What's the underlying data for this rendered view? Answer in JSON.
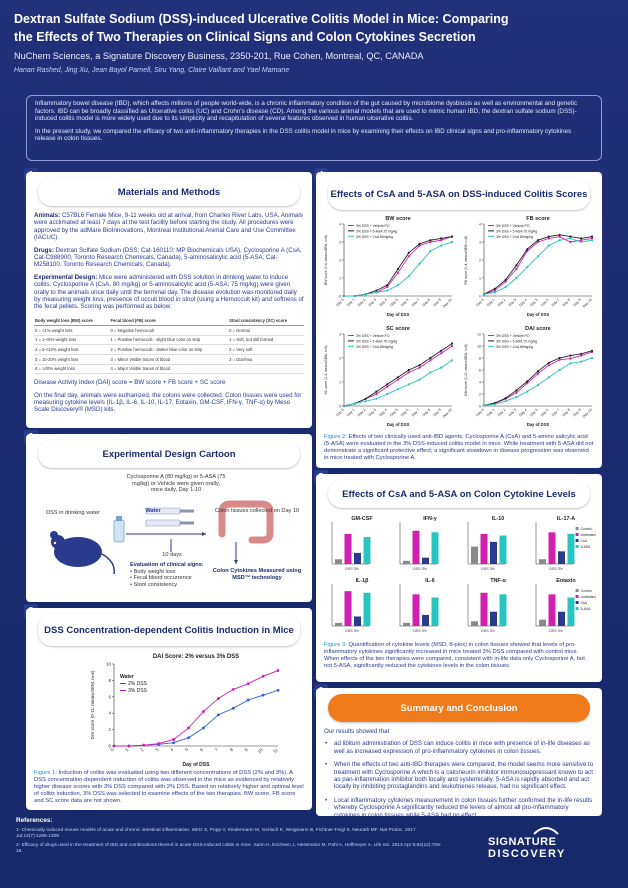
{
  "header": {
    "title_line1": "Dextran Sulfate Sodium (DSS)-induced Ulcerative Colitis Model in Mice: Comparing",
    "title_line2": "the Effects of Two Therapies on Clinical Signs and Colon Cytokines Secretion",
    "affiliation": "NuChem Sciences, a Signature Discovery Business, 2350-201, Rue Cohen, Montreal, QC, CANADA",
    "authors": "Hanan Rashed, Jing Xu, Jean Bayol Parnell, Siru Yang, Claire Vaillant and Yael Mamane"
  },
  "intro": {
    "p1": "Inflammatory bowel disease (IBD), which affects millions of people world-wide, is a chronic inflammatory condition of the gut caused by microbiome dysbiosis as well as environmental and genetic factors. IBD can be broadly classified as Ulcerative colitis (UC) and Crohn's disease (CD). Among the various animal models that are used to mimic human IBD, the dextran sulfate sodium (DSS)-induced colitis model is more widely used due to its simplicity and recapitulation of several features observed in human ulcerative colitis.",
    "p2": "In the present study, we compared the efficacy of two anti-inflammatory therapies in the DSS colitis model in mice by examining their effects on IBD clinical signs and pro-inflammatory cytokines release in colon tissues."
  },
  "panel1": {
    "num": "1",
    "title": "Materials and Methods",
    "animals_label": "Animals:",
    "animals_text": " C57BL6 Female Mice, 9-11 weeks old at arrival, from Charles River Labs, USA. Animals were acclimated at least 7 days at the test facility before starting the study. All procedures were approved by the adMare BioInnovations, Montreal Institutional Animal Care and Use Committee (IACUC).",
    "drugs_label": "Drugs:",
    "drugs_text": " Dextran Sulfate Sodium (DSS; Cat-160110; MP Biochemicals USA), Cyclosporine A (CsA, Cat-C988900, Toronto Research Chemicals, Canada), 5-aminosalicylic acid (5-ASA; Cat-M258100, Toronto Research Chemicals, Canada).",
    "design_label": "Experimental Design:",
    "design_text": " Mice were administered with DSS solution in drinking water to induce colitis. Cyclosporine A (CsA, 80 mg/kg) or 5-aminosalicylic acid (5-ASA; 75 mg/kg) were given orally to the animals once daily until the terminal day. The disease evolution was monitored daily by measuring weight loss, presence of occult blood in stool (using a Hemoccult kit) and softness of the fecal pellets. Scoring was performed as below:",
    "table_headers": [
      "Body weight loss (BW) score",
      "Fecal blood (FB) score",
      "Stool consistency (SC) score"
    ],
    "table_rows": [
      [
        "0 = <1% weight loss",
        "0 = Negative hemoccult",
        "0 = Normal"
      ],
      [
        "1 = 1-<5% weight loss",
        "1 = Positive hemoccult - slight blue color on strip",
        "1 = Soft, but still formed"
      ],
      [
        "2 = 5-<10% weight loss",
        "2 = Positive hemoccult - darker blue color on strip",
        "2 = Very soft"
      ],
      [
        "3 = 10-20% weight loss",
        "3 = Minor Visible traces of blood",
        "3 = Diarrhea"
      ],
      [
        "4 = >20% weight loss",
        "4 = Major Visible traces of blood",
        ""
      ]
    ],
    "dai_formula": "Disease Activity Index (DAI) score = BW score + FB score + SC score",
    "final_text": "On the final day, animals were euthanized, the colons were collected. Colon tissues were used for measuring cytokine levels (IL-1β, IL-6, IL-10, IL-17, Eotaxin, GM-CSF, IFN-γ, TNF-α) by Meso Scale Discovery® (MSD) kits."
  },
  "panel2": {
    "num": "2",
    "title": "Experimental Design Cartoon",
    "treat_text": "Cyclosporine A (80 mg/kg) or 5-ASA (75 mg/kg) or Vehicle were given orally, once daily, Day 1-10",
    "dss_label": "DSS in drinking water",
    "water_label": "Water",
    "colon_label": "Colon tissues collected on Day 10",
    "days_label": "10 days",
    "eval_title": "Evaluation of clinical signs:",
    "eval_items": [
      "Body weight loss",
      "Fecal blood occurrence",
      "Stool consistency"
    ],
    "cyto_label": "Colon Cytokines Measured using MSD™ technology"
  },
  "panel3": {
    "num": "3",
    "title": "DSS Concentration-dependent Colitis Induction in Mice",
    "fig_label": "Figure 1:",
    "caption": " Induction of colitis was evaluated using two different concentrations of DSS (2% and 3%). A DSS concentration-dependent induction of colitis was observed in the mice as evidenced by relatively higher disease scores with 3% DSS compared with 2% DSS. Based on relatively higher and optimal level of colitis induction, 3% DSS was selected to examine effects of the two therapies. BW score, FB score and SC score data are not shown."
  },
  "panel4": {
    "num": "4",
    "title": "Effects of CsA and 5-ASA on DSS-induced Colitis Scores",
    "fig_label": "Figure 2:",
    "caption": " Effects of two clinically used anti-IBD agents, Cyclosporine A (CsA) and 5-amino salicylic acid (5-ASA) were evaluated in the 3% DSS-induced colitis model in mice. While treatment with 5-ASA did not demonstrate a significant protective effect; a significant slowdown in disease progression was observed in mice treated with Cyclosporine A."
  },
  "panel5": {
    "num": "5",
    "title": "Effects of CsA and 5-ASA on Colon Cytokine Levels",
    "fig_label": "Figure 3:",
    "caption": " Quantification of cytokine levels (MSD, 8-plex) in colon tissues showed that levels of pro-inflammatory cytokines significantly increased in mice treated 3% DSS compared with control mice. When effects of the two therapies were compared, consistent with in-life data only Cyclosporine A, but not 5-ASA, significantly reduced the cytokines levels in the colon tissues."
  },
  "panel6": {
    "num": "6",
    "title": "Summary and Conclusion",
    "lead": "Our results showed that",
    "items": [
      "ad libitum administration of DSS can induce colitis in mice with presence of in-life diseases as well as increased expression of pro-inflammatory cytokines in colon tissues.",
      "When the effects of two anti-IBD therapies were compared, the model seems more sensitive to treatment with Cyclosporine A which is a calcineurin inhibitor immunosuppressant known to act as pan-inflammation inhibitor both locally and systemically. 5-ASA is rapidly absorbed and act locally by inhibiting prostaglandins and leukotrienes release, had no significant effect.",
      "Local inflammatory cytokines measurement in colon tissues further confirmed the in-life results whereby Cyclosporine A significantly reduced the levels of almost all pro-inflammatory cytokines in colon tissues while 5-ASA had no effect."
    ]
  },
  "references": {
    "heading": "References:",
    "r1": "1- Chemically induced mouse models of acute and chronic intestinal inflammation. Wirtz S, Popp V, Kindermann M, Gerlach K, Weigmann B, Fichtner-Feigl S, Neurath MF. Nat Protoc. 2017 Jul;12(7):1295-1309",
    "r2": "2- Efficacy of drugs used in the treatment of IBD and combinations thereof in acute DSS-induced colitis in mice. Sann H, Erichsen J, Hessmann M, Pahl A, Hoffmeyer A. Life Sci. 2013 Apr 9;92(12):708-18."
  },
  "logo": {
    "line1": "SIGNATURE",
    "line2": "DISCOVERY"
  },
  "colors": {
    "navy": "#1d2b6e",
    "pink": "#d21fb0",
    "blue": "#2f5fd8",
    "teal": "#27c4c0",
    "black": "#222222"
  },
  "chart_data": [
    {
      "id": "fig1",
      "type": "line",
      "title": "DAI Score: 2% versus 3% DSS",
      "xlabel": "Day of DSS",
      "ylabel": "DAI score (0-11, mean±SEM, n=6)",
      "x": [
        0,
        1,
        2,
        3,
        4,
        5,
        6,
        7,
        8,
        9,
        10,
        11
      ],
      "ylim": [
        0,
        10
      ],
      "yticks": [
        0,
        2,
        4,
        6,
        8,
        10
      ],
      "legend_title": "Water",
      "series": [
        {
          "name": "2% DSS",
          "color": "#2f5fd8",
          "values": [
            0,
            0,
            0.1,
            0.2,
            0.4,
            1.0,
            2.2,
            3.8,
            4.6,
            5.6,
            6.2,
            6.8
          ]
        },
        {
          "name": "3% DSS",
          "color": "#d21fb0",
          "values": [
            0,
            0,
            0.1,
            0.3,
            0.8,
            2.2,
            4.2,
            5.8,
            6.9,
            7.6,
            8.5,
            9.2
          ]
        }
      ]
    },
    {
      "id": "bw",
      "type": "line",
      "title": "BW score",
      "xlabel": "Day of DSS",
      "ylabel": "BW score (0-4, mean±SEM, n=8)",
      "ylim": [
        0,
        4
      ],
      "yticks": [
        0,
        1,
        2,
        3,
        4
      ],
      "x": [
        "Day 0",
        "Day 1",
        "Day 2",
        "Day 3",
        "Day 4",
        "Day 5",
        "Day 6",
        "Day 7",
        "Day 8",
        "Day 9",
        "Day 10"
      ],
      "series": [
        {
          "name": "3% DSS + Vehicle PO",
          "color": "#d21fb0",
          "values": [
            0,
            0,
            0.1,
            0.2,
            0.5,
            1.3,
            2.2,
            2.8,
            3.0,
            3.1,
            3.3
          ]
        },
        {
          "name": "3% DSS + 5-ASA 75 mg/kg",
          "color": "#222222",
          "values": [
            0,
            0,
            0.1,
            0.3,
            0.6,
            1.5,
            2.4,
            2.9,
            3.1,
            3.2,
            3.3
          ]
        },
        {
          "name": "3% DSS + CsA 80mg/kg",
          "color": "#27c4c0",
          "values": [
            0,
            0,
            0.1,
            0.2,
            0.3,
            0.6,
            1.1,
            1.8,
            2.5,
            2.8,
            3.0
          ]
        }
      ]
    },
    {
      "id": "fb",
      "type": "line",
      "title": "FB score",
      "xlabel": "Day of DSS",
      "ylabel": "FB score (0-4, mean±SEM, n=8)",
      "ylim": [
        0,
        4
      ],
      "yticks": [
        0,
        1,
        2,
        3,
        4
      ],
      "x": [
        "Day 0",
        "Day 1",
        "Day 2",
        "Day 3",
        "Day 4",
        "Day 5",
        "Day 6",
        "Day 7",
        "Day 8",
        "Day 9",
        "Day 10"
      ],
      "series": [
        {
          "name": "3% DSS + Vehicle PO",
          "color": "#d21fb0",
          "values": [
            0.1,
            0.3,
            0.8,
            1.5,
            2.5,
            3.0,
            3.2,
            3.3,
            3.0,
            3.1,
            3.2
          ]
        },
        {
          "name": "3% DSS + 5-ASA 75 mg/kg",
          "color": "#222222",
          "values": [
            0.1,
            0.4,
            0.9,
            1.7,
            2.6,
            3.1,
            3.3,
            3.4,
            3.3,
            3.2,
            3.3
          ]
        },
        {
          "name": "3% DSS + CsA 80mg/kg",
          "color": "#27c4c0",
          "values": [
            0.1,
            0.2,
            0.5,
            1.0,
            1.6,
            2.2,
            2.8,
            3.1,
            3.2,
            3.0,
            3.1
          ]
        }
      ]
    },
    {
      "id": "sc",
      "type": "line",
      "title": "SC score",
      "xlabel": "Day of DSS",
      "ylabel": "SC score (0-3, mean±SEM, n=8)",
      "ylim": [
        0,
        3
      ],
      "yticks": [
        0,
        1,
        2,
        3
      ],
      "x": [
        "Day 0",
        "Day 1",
        "Day 2",
        "Day 3",
        "Day 4",
        "Day 5",
        "Day 6",
        "Day 7",
        "Day 8",
        "Day 9",
        "Day 10"
      ],
      "series": [
        {
          "name": "3% DSS + Vehicle PO",
          "color": "#d21fb0",
          "values": [
            0,
            0.1,
            0.3,
            0.5,
            0.8,
            1.1,
            1.4,
            1.6,
            1.9,
            2.2,
            2.5
          ]
        },
        {
          "name": "3% DSS + 5-ASA 75 mg/kg",
          "color": "#222222",
          "values": [
            0,
            0.1,
            0.3,
            0.6,
            0.9,
            1.2,
            1.5,
            1.7,
            2.0,
            2.3,
            2.6
          ]
        },
        {
          "name": "3% DSS + CsA 80mg/kg",
          "color": "#27c4c0",
          "values": [
            0,
            0.1,
            0.2,
            0.3,
            0.5,
            0.7,
            0.9,
            1.1,
            1.4,
            1.6,
            1.9
          ]
        }
      ]
    },
    {
      "id": "dai",
      "type": "line",
      "title": "DAI score",
      "xlabel": "Day of DSS",
      "ylabel": "DAI score (0-11, mean±SEM, n=8)",
      "ylim": [
        0,
        12
      ],
      "yticks": [
        0,
        2,
        4,
        6,
        8,
        10,
        12
      ],
      "x": [
        "Day 0",
        "Day 1",
        "Day 2",
        "Day 3",
        "Day 4",
        "Day 5",
        "Day 6",
        "Day 7",
        "Day 8",
        "Day 9",
        "Day 10"
      ],
      "series": [
        {
          "name": "3% DSS + Vehicle PO",
          "color": "#d21fb0",
          "values": [
            0.1,
            0.4,
            1.2,
            2.2,
            3.8,
            5.4,
            6.8,
            7.7,
            7.9,
            8.4,
            9.0
          ]
        },
        {
          "name": "3% DSS + 5-ASA 75 mg/kg",
          "color": "#222222",
          "values": [
            0.1,
            0.5,
            1.3,
            2.6,
            4.1,
            5.8,
            7.2,
            8.0,
            8.4,
            8.7,
            9.2
          ]
        },
        {
          "name": "3% DSS + CsA 80mg/kg",
          "color": "#27c4c0",
          "values": [
            0.1,
            0.3,
            0.8,
            1.5,
            2.4,
            3.5,
            4.8,
            6.0,
            7.1,
            7.4,
            8.0
          ]
        }
      ]
    },
    {
      "id": "cytokines",
      "type": "bar",
      "groups": [
        "Control",
        "Vehicle",
        "CsA",
        "5-ASA"
      ],
      "group_colors": [
        "#8a8a8a",
        "#d21fb0",
        "#2a3a8c",
        "#27c4c0"
      ],
      "legend": [
        "Control",
        "Untreated",
        "CsA",
        "5-ASA"
      ],
      "xlabel_group": "DSS 3%",
      "panels": [
        {
          "name": "GM-CSF",
          "values": [
            0.3,
            1.9,
            0.7,
            1.7
          ]
        },
        {
          "name": "IFN-γ",
          "values": [
            0.2,
            2.1,
            0.4,
            2.0
          ]
        },
        {
          "name": "IL-10",
          "values": [
            1.1,
            1.9,
            1.4,
            1.8
          ]
        },
        {
          "name": "IL-17-A",
          "values": [
            0.3,
            2.0,
            0.8,
            1.9
          ]
        },
        {
          "name": "IL-1β",
          "values": [
            0.2,
            2.2,
            0.6,
            2.1
          ]
        },
        {
          "name": "IL-6",
          "values": [
            0.2,
            2.0,
            0.7,
            1.8
          ]
        },
        {
          "name": "TNF-α",
          "values": [
            0.3,
            2.1,
            0.9,
            2.0
          ]
        },
        {
          "name": "Eotaxin",
          "values": [
            0.4,
            2.0,
            0.9,
            1.8
          ]
        }
      ]
    }
  ]
}
